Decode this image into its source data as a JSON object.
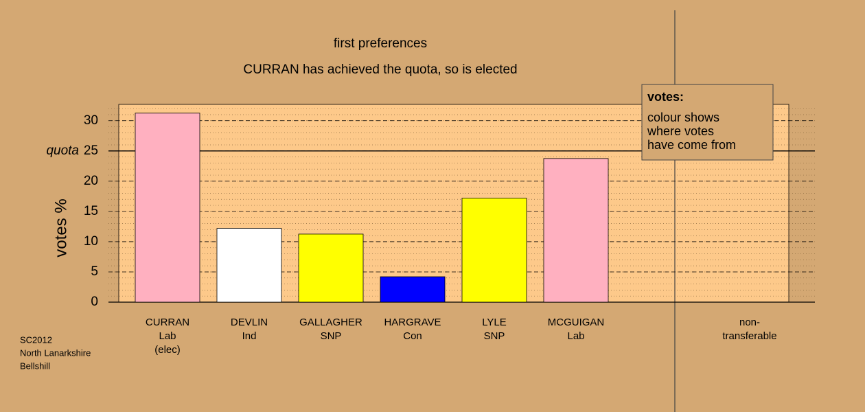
{
  "chart_data": {
    "type": "bar",
    "title": "first preferences",
    "subtitle": "CURRAN has achieved the quota, so is elected",
    "y_label": "votes %",
    "categories": [
      [
        "CURRAN",
        "Lab",
        "(elec)"
      ],
      [
        "DEVLIN",
        "Ind"
      ],
      [
        "GALLAGHER",
        "SNP"
      ],
      [
        "HARGRAVE",
        "Con"
      ],
      [
        "LYLE",
        "SNP"
      ],
      [
        "MCGUIGAN",
        "Lab"
      ],
      [
        "non-",
        "transferable"
      ]
    ],
    "values": [
      31.25,
      12.2,
      11.25,
      4.2,
      17.2,
      23.75,
      0
    ],
    "colors": [
      "#ffb0c0",
      "#ffffff",
      "#ffff00",
      "#0000ff",
      "#ffff00",
      "#ffb0c0",
      "#ffffff"
    ],
    "ylim": [
      0,
      32.7
    ],
    "yticks": [
      0,
      5,
      10,
      15,
      20,
      25,
      30
    ],
    "minor_grid_step": 1,
    "grid": true,
    "quota": {
      "value": 25,
      "label": "quota"
    },
    "legend": {
      "title": "votes:",
      "lines": [
        "colour shows",
        "where votes",
        "have come from"
      ]
    },
    "footnote": [
      "SC2012",
      "North Lanarkshire",
      "Bellshill"
    ]
  }
}
